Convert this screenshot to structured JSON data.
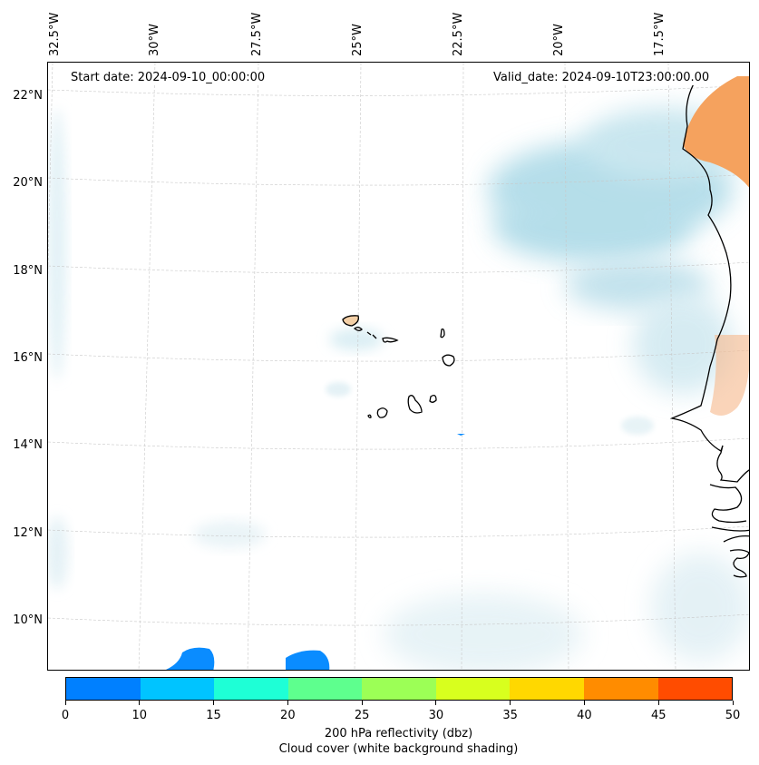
{
  "map": {
    "start_date": "Start date: 2024-09-10_00:00:00",
    "valid_date": "Valid_date: 2024-09-10T23:00:00.00",
    "lon_labels": [
      "32.5°W",
      "30°W",
      "27.5°W",
      "25°W",
      "22.5°W",
      "20°W",
      "17.5°W"
    ],
    "lat_labels": [
      "22°N",
      "20°N",
      "18°N",
      "16°N",
      "14°N",
      "12°N",
      "10°N"
    ],
    "features": [
      "Cape Verde islands",
      "West African coastline",
      "cloud cover shading",
      "reflectivity echoes"
    ]
  },
  "colorbar": {
    "ticks": [
      "0",
      "10",
      "15",
      "20",
      "25",
      "30",
      "35",
      "40",
      "45",
      "50"
    ],
    "colors": [
      "#0080ff",
      "#00c4ff",
      "#1effd6",
      "#5eff8e",
      "#9cff56",
      "#d8ff1e",
      "#ffd800",
      "#ff8c00",
      "#ff4c00"
    ],
    "label_line1": "200 hPa reflectivity (dbz)",
    "label_line2": "Cloud cover (white background shading)"
  },
  "colors": {
    "cloud": "#a8d8e6",
    "land_warm": "#f5a25e",
    "echo": "#0a8cff"
  }
}
